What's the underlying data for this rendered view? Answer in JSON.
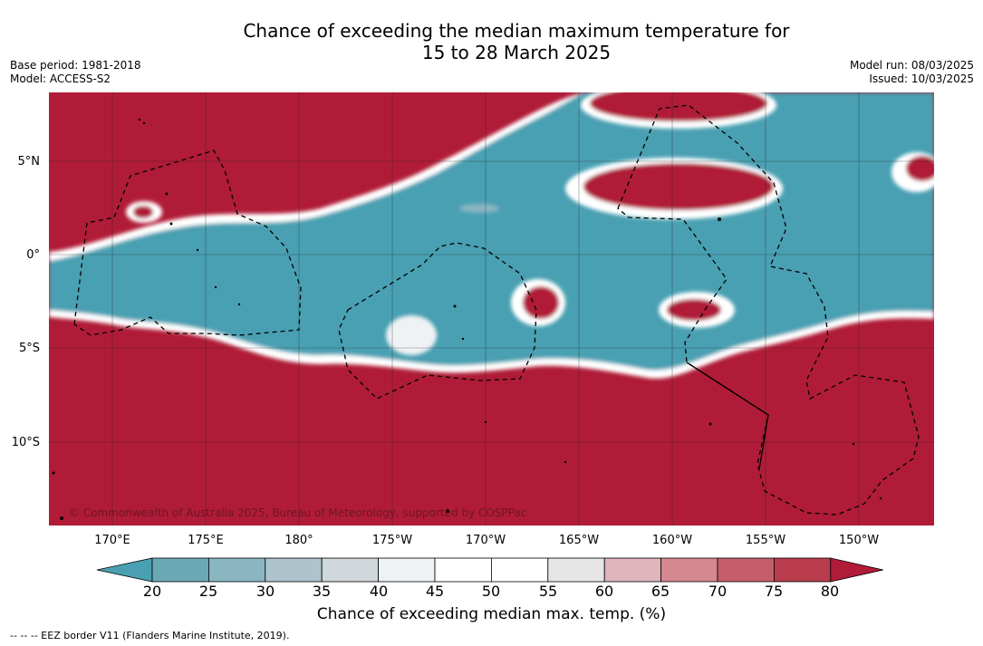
{
  "title_line1": "Chance of exceeding the median maximum temperature for",
  "title_line2": "15 to 28 March 2025",
  "base_period": "Base period: 1981-2018",
  "model": "Model: ACCESS-S2",
  "model_run": "Model run: 08/03/2025",
  "issued": "Issued: 10/03/2025",
  "copyright": "© Commonwealth of Australia 2025, Bureau of Meteorology, supported by COSPPac",
  "lat_labels": [
    "5°N",
    "0°",
    "5°S",
    "10°S"
  ],
  "lon_labels": [
    "170°E",
    "175°E",
    "180°",
    "175°W",
    "170°W",
    "165°W",
    "160°W",
    "155°W",
    "150°W"
  ],
  "colorbar": {
    "ticks": [
      "20",
      "25",
      "30",
      "35",
      "40",
      "45",
      "50",
      "55",
      "60",
      "65",
      "70",
      "75",
      "80"
    ],
    "colors": [
      "#4aa0b2",
      "#6aa8b4",
      "#8ab6c2",
      "#aec4cc",
      "#d0d8db",
      "#eef2f4",
      "#ffffff",
      "#ffffff",
      "#e6e6e6",
      "#dfb4bb",
      "#d48890",
      "#c45e6a",
      "#b93d4d",
      "#b01c37"
    ],
    "title": "Chance of exceeding median max. temp. (%)"
  },
  "footnote": "--  --  -- EEZ border V11 (Flanders Marine Institute, 2019).",
  "colors": {
    "above": "#b01c37",
    "below": "#4aa0b2",
    "neutral": "#ffffff"
  }
}
